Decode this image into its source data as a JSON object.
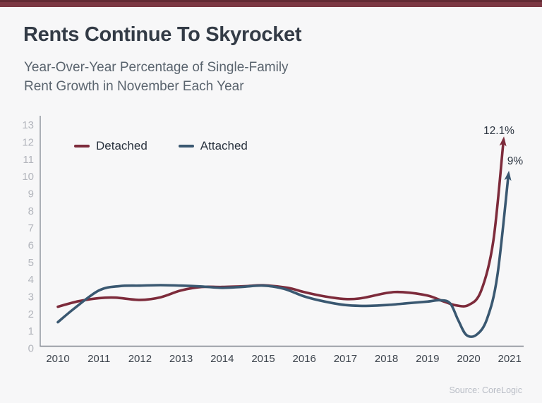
{
  "page": {
    "title": "Rents Continue To Skyrocket",
    "subtitle_line1": "Year-Over-Year Percentage of Single-Family",
    "subtitle_line2": "Rent Growth in November Each Year",
    "source": "Source: CoreLogic",
    "accent_color": "#7c3843",
    "background_color": "#f7f7f8"
  },
  "chart_data": {
    "type": "line",
    "title": "Rents Continue To Skyrocket",
    "subtitle": "Year-Over-Year Percentage of Single-Family Rent Growth in November Each Year",
    "categories": [
      "2010",
      "2011",
      "2012",
      "2013",
      "2014",
      "2015",
      "2016",
      "2017",
      "2018",
      "2019",
      "2020",
      "2021"
    ],
    "y_ticks": [
      0,
      1,
      2,
      3,
      4,
      5,
      6,
      7,
      8,
      9,
      10,
      11,
      12,
      13
    ],
    "ylim": [
      0,
      13
    ],
    "xlabel": "",
    "ylabel": "",
    "grid": false,
    "legend_position": "top-left",
    "series": [
      {
        "name": "Detached",
        "color": "#7d2b3b",
        "annotation": "12.1%",
        "yearly_values": [
          2.4,
          2.9,
          2.8,
          3.4,
          3.5,
          3.7,
          3.2,
          2.8,
          3.2,
          3.0,
          2.5,
          12.1
        ],
        "curve_points": [
          [
            2010.0,
            2.4
          ],
          [
            2010.5,
            2.72
          ],
          [
            2011.0,
            2.9
          ],
          [
            2011.4,
            2.93
          ],
          [
            2012.0,
            2.8
          ],
          [
            2012.5,
            2.95
          ],
          [
            2013.0,
            3.35
          ],
          [
            2013.5,
            3.55
          ],
          [
            2014.0,
            3.55
          ],
          [
            2014.6,
            3.6
          ],
          [
            2015.0,
            3.65
          ],
          [
            2015.6,
            3.5
          ],
          [
            2016.0,
            3.25
          ],
          [
            2016.5,
            3.0
          ],
          [
            2017.0,
            2.85
          ],
          [
            2017.4,
            2.9
          ],
          [
            2018.0,
            3.2
          ],
          [
            2018.4,
            3.25
          ],
          [
            2019.0,
            3.05
          ],
          [
            2019.4,
            2.7
          ],
          [
            2019.7,
            2.48
          ],
          [
            2020.0,
            2.5
          ],
          [
            2020.3,
            3.3
          ],
          [
            2020.6,
            6.2
          ],
          [
            2020.85,
            12.1
          ]
        ]
      },
      {
        "name": "Attached",
        "color": "#3a5871",
        "annotation": "9%",
        "yearly_values": [
          1.5,
          3.4,
          3.7,
          3.7,
          3.5,
          3.7,
          3.0,
          2.5,
          2.5,
          2.7,
          0.7,
          9.0
        ],
        "curve_points": [
          [
            2010.0,
            1.5
          ],
          [
            2010.4,
            2.3
          ],
          [
            2011.0,
            3.35
          ],
          [
            2011.5,
            3.6
          ],
          [
            2012.0,
            3.63
          ],
          [
            2012.5,
            3.66
          ],
          [
            2013.0,
            3.63
          ],
          [
            2013.5,
            3.58
          ],
          [
            2014.0,
            3.5
          ],
          [
            2014.5,
            3.56
          ],
          [
            2015.0,
            3.63
          ],
          [
            2015.5,
            3.45
          ],
          [
            2016.0,
            3.0
          ],
          [
            2016.5,
            2.7
          ],
          [
            2017.0,
            2.5
          ],
          [
            2017.5,
            2.45
          ],
          [
            2018.0,
            2.5
          ],
          [
            2018.5,
            2.6
          ],
          [
            2019.0,
            2.7
          ],
          [
            2019.3,
            2.78
          ],
          [
            2019.55,
            2.6
          ],
          [
            2019.75,
            1.6
          ],
          [
            2019.95,
            0.75
          ],
          [
            2020.2,
            0.78
          ],
          [
            2020.45,
            1.7
          ],
          [
            2020.7,
            4.2
          ],
          [
            2020.97,
            10.1
          ]
        ]
      }
    ]
  }
}
